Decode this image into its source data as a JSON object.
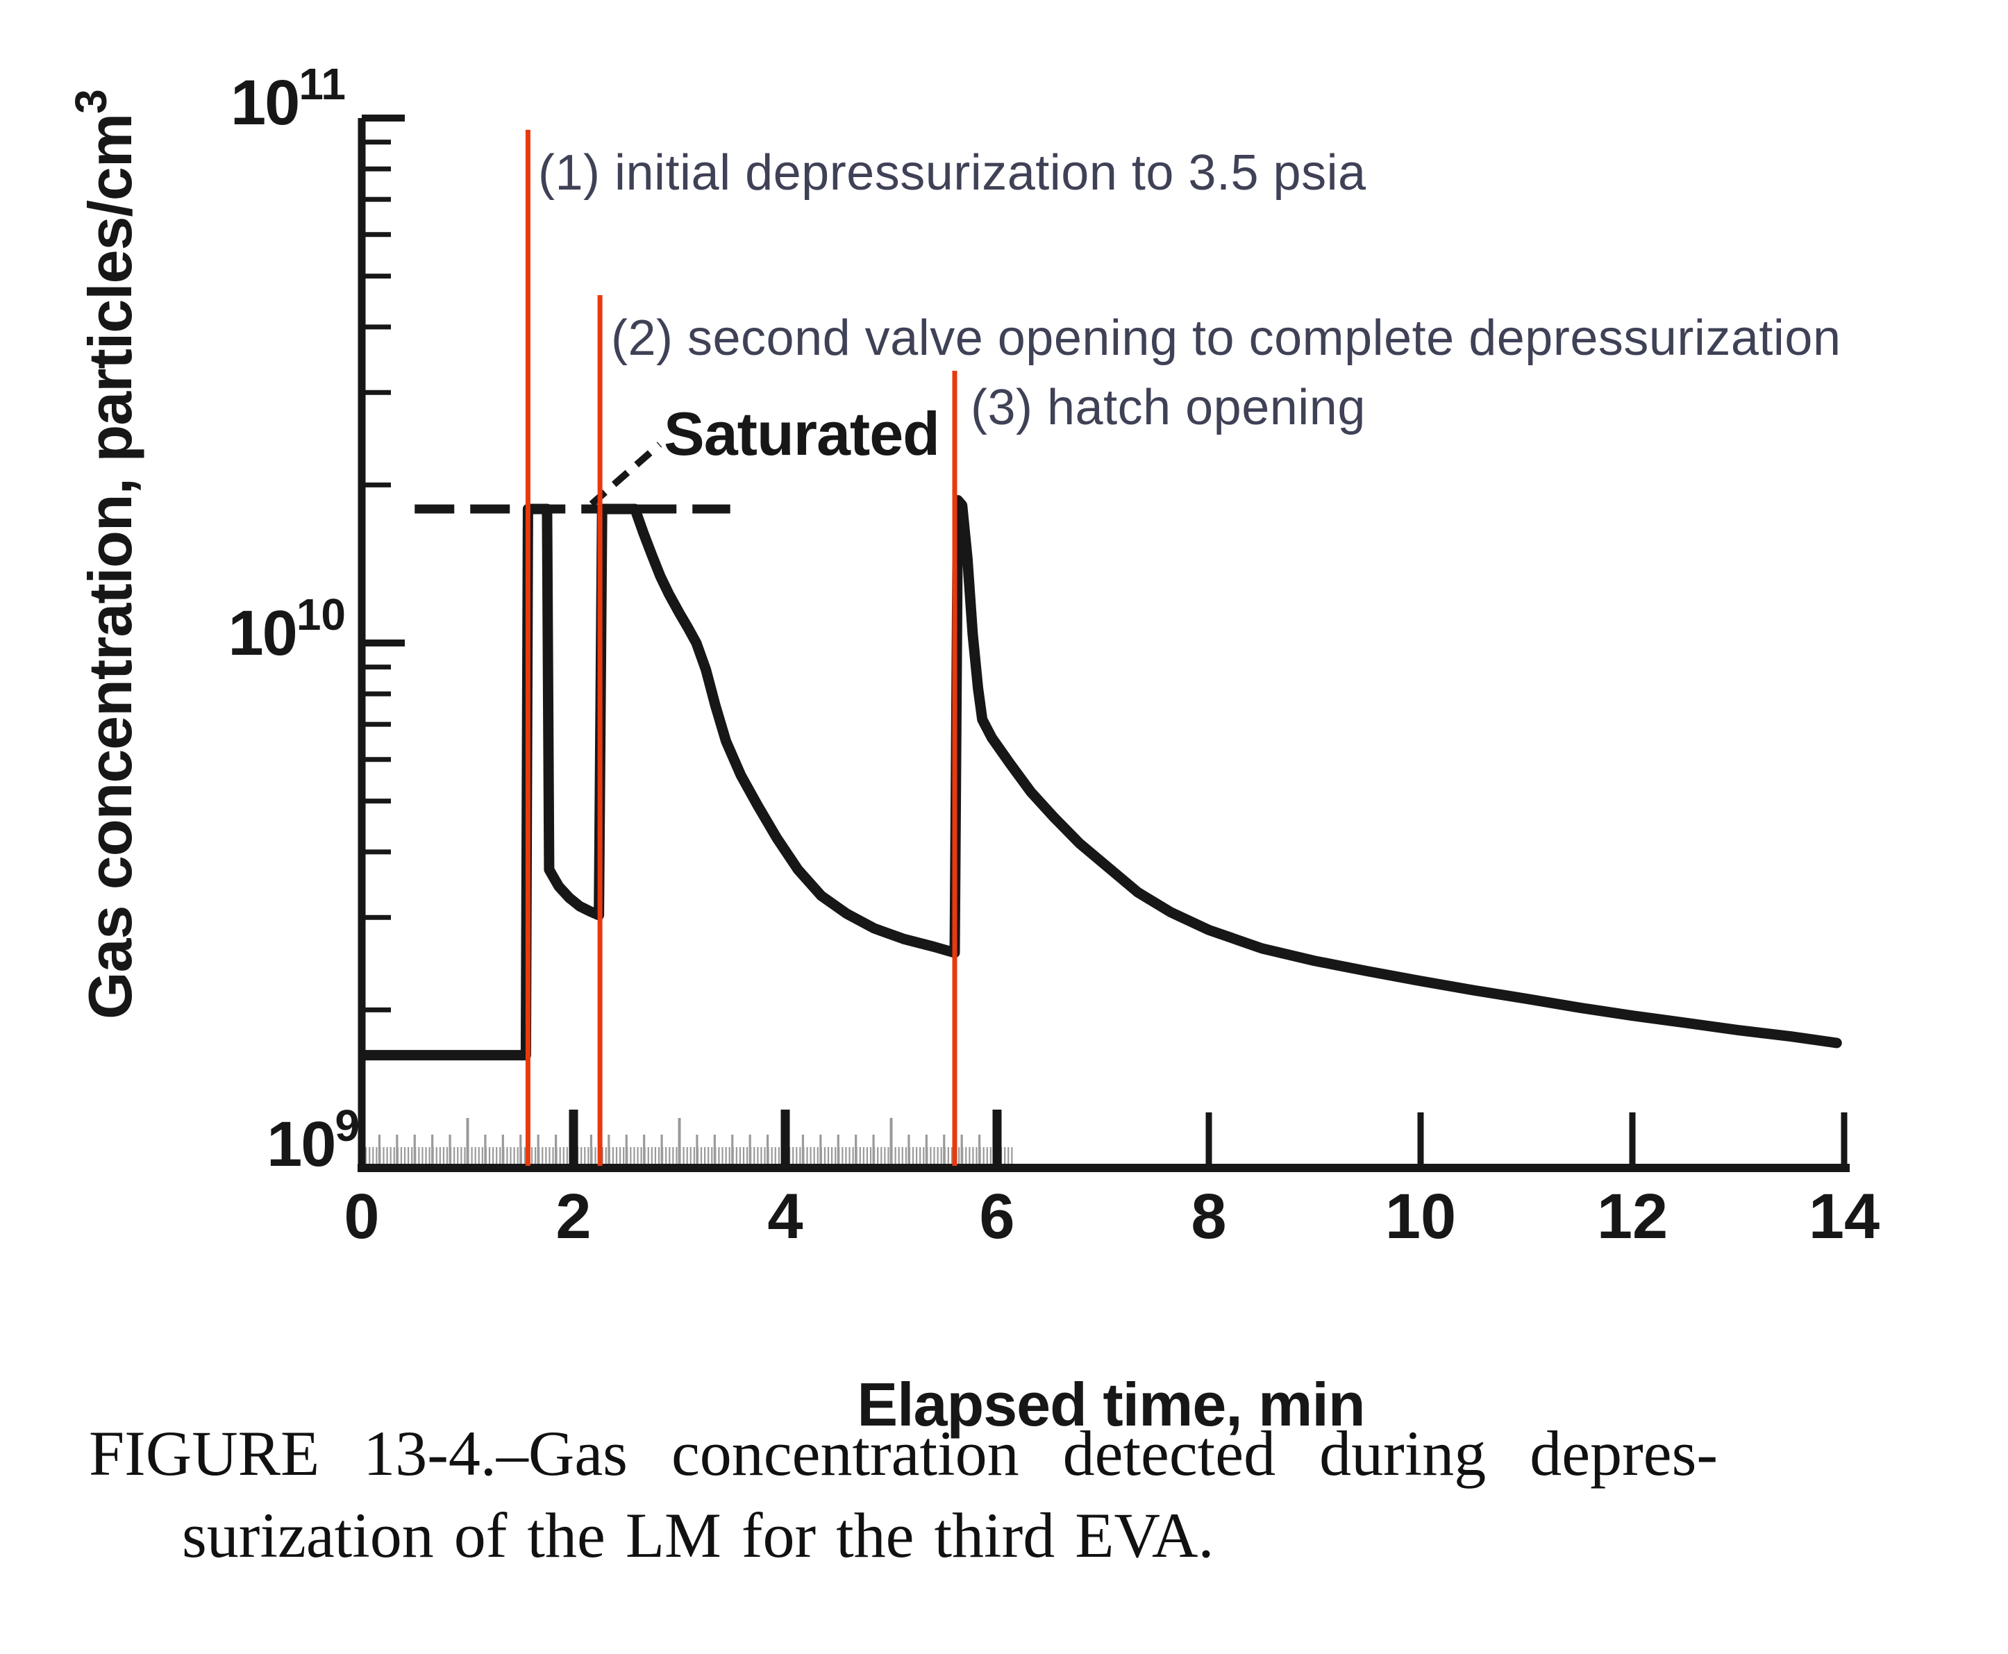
{
  "page": {
    "background": "#ffffff"
  },
  "colors": {
    "ink": "#171717",
    "event_line": "#e8390f",
    "annotation_text": "#3f4156",
    "strip_chart_comb": "#9a9a9a"
  },
  "labels": {
    "saturated": "Saturated"
  },
  "annotations": [
    {
      "label": "(1) initial depressurization to 3.5 psia"
    },
    {
      "label": "(2) second valve opening to complete depressurization"
    },
    {
      "label": "(3) hatch opening"
    }
  ],
  "axes": {
    "x_title": "Elapsed time, min",
    "y_title_base": "Gas concentration, particles/cm",
    "y_title_exp": "3",
    "x_tick_labels": [
      "0",
      "2",
      "4",
      "6",
      "8",
      "10",
      "12",
      "14"
    ],
    "y_tick_labels": [
      {
        "base": "10",
        "exp": "11"
      },
      {
        "base": "10",
        "exp": "10"
      },
      {
        "base": "10",
        "exp": "9"
      }
    ]
  },
  "caption": {
    "line1": "FIGURE 13-4.–Gas concentration detected during depres-",
    "line2": "surization of the LM for the third EVA."
  },
  "chart_data": {
    "type": "line",
    "title": "",
    "xlabel": "Elapsed time, min",
    "ylabel": "Gas concentration, particles/cm^3",
    "xlim": [
      0,
      14
    ],
    "ylim": [
      1000000000.0,
      100000000000.0
    ],
    "y_scale": "log",
    "grid": false,
    "x_major_ticks": [
      2,
      4,
      6,
      8,
      10,
      12,
      14
    ],
    "y_decade_ticks": [
      9,
      10,
      11
    ],
    "y_minor_tick_multiples": [
      2,
      3,
      4,
      5,
      6,
      7,
      8,
      9
    ],
    "saturated_level": 18000000000.0,
    "saturated_line_span_min": [
      0.5,
      3.48
    ],
    "strip_chart_band": {
      "t_start": 0.04,
      "t_end": 6.16,
      "fine_tick_s": 2,
      "medium_tick_s": 10,
      "tall_tick_s": 60
    },
    "events": [
      {
        "n": 1,
        "t": 1.57,
        "line_top_v": 95000000000.0,
        "label": "initial depressurization to 3.5 psia"
      },
      {
        "n": 2,
        "t": 2.25,
        "line_top_v": 46000000000.0,
        "label": "second valve opening to complete depressurization"
      },
      {
        "n": 3,
        "t": 5.6,
        "line_top_v": 33000000000.0,
        "label": "hatch opening"
      }
    ],
    "series": [
      {
        "name": "gas concentration",
        "points": [
          [
            0.02,
            1640000000.0
          ],
          [
            0.5,
            1640000000.0
          ],
          [
            1.0,
            1640000000.0
          ],
          [
            1.55,
            1640000000.0
          ],
          [
            1.57,
            18000000000.0
          ],
          [
            1.75,
            18000000000.0
          ],
          [
            1.77,
            3700000000.0
          ],
          [
            1.86,
            3440000000.0
          ],
          [
            1.96,
            3270000000.0
          ],
          [
            2.06,
            3150000000.0
          ],
          [
            2.16,
            3080000000.0
          ],
          [
            2.24,
            3030000000.0
          ],
          [
            2.27,
            18000000000.0
          ],
          [
            2.58,
            18000000000.0
          ],
          [
            2.66,
            16200000000.0
          ],
          [
            2.74,
            14700000000.0
          ],
          [
            2.82,
            13400000000.0
          ],
          [
            2.9,
            12400000000.0
          ],
          [
            3.0,
            11400000000.0
          ],
          [
            3.08,
            10700000000.0
          ],
          [
            3.16,
            10000000000.0
          ],
          [
            3.25,
            8900000000.0
          ],
          [
            3.34,
            7600000000.0
          ],
          [
            3.44,
            6500000000.0
          ],
          [
            3.58,
            5600000000.0
          ],
          [
            3.74,
            4900000000.0
          ],
          [
            3.92,
            4250000000.0
          ],
          [
            4.12,
            3700000000.0
          ],
          [
            4.34,
            3300000000.0
          ],
          [
            4.58,
            3050000000.0
          ],
          [
            4.84,
            2860000000.0
          ],
          [
            5.12,
            2730000000.0
          ],
          [
            5.4,
            2640000000.0
          ],
          [
            5.6,
            2570000000.0
          ],
          [
            5.63,
            18700000000.0
          ],
          [
            5.67,
            18300000000.0
          ],
          [
            5.72,
            14500000000.0
          ],
          [
            5.77,
            10400000000.0
          ],
          [
            5.82,
            8200000000.0
          ],
          [
            5.86,
            7150000000.0
          ],
          [
            5.95,
            6600000000.0
          ],
          [
            6.12,
            5900000000.0
          ],
          [
            6.32,
            5200000000.0
          ],
          [
            6.54,
            4650000000.0
          ],
          [
            6.78,
            4150000000.0
          ],
          [
            7.04,
            3750000000.0
          ],
          [
            7.33,
            3350000000.0
          ],
          [
            7.64,
            3070000000.0
          ],
          [
            8.0,
            2840000000.0
          ],
          [
            8.5,
            2620000000.0
          ],
          [
            9.0,
            2480000000.0
          ],
          [
            9.5,
            2370000000.0
          ],
          [
            10.0,
            2270000000.0
          ],
          [
            10.5,
            2180000000.0
          ],
          [
            11.0,
            2100000000.0
          ],
          [
            11.5,
            2020000000.0
          ],
          [
            12.0,
            1950000000.0
          ],
          [
            12.5,
            1890000000.0
          ],
          [
            13.0,
            1830000000.0
          ],
          [
            13.5,
            1780000000.0
          ],
          [
            13.93,
            1730000000.0
          ]
        ]
      }
    ]
  }
}
